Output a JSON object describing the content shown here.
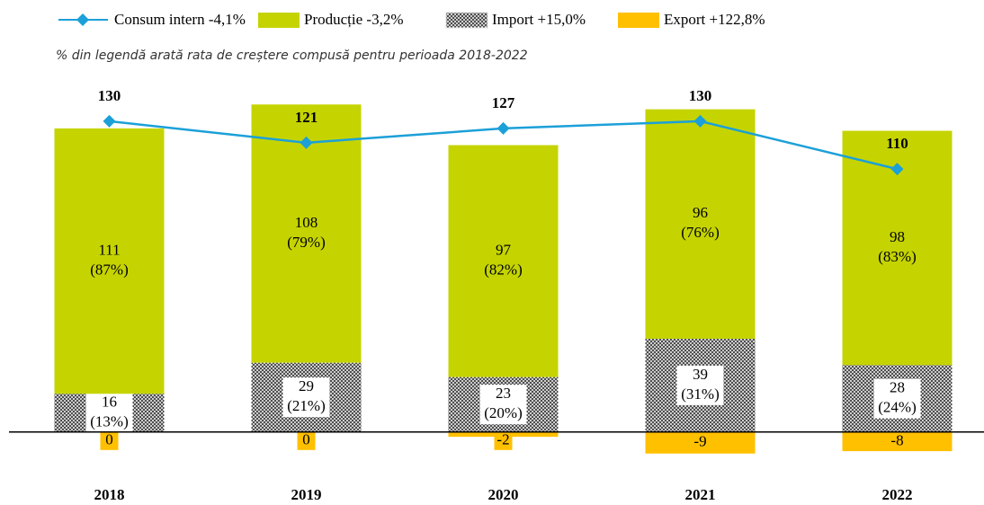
{
  "chart_data": {
    "type": "bar",
    "subtitle": "% din legendă arată rata de creștere compusă pentru perioada 2018-2022",
    "categories": [
      "2018",
      "2019",
      "2020",
      "2021",
      "2022"
    ],
    "ylim": [
      -20,
      145
    ],
    "series": [
      {
        "name": "Consum intern -4,1%",
        "type": "line",
        "color": "#1ca0d8",
        "values": [
          130,
          121,
          127,
          130,
          110
        ]
      },
      {
        "name": "Producție -3,2%",
        "color": "#c5d400",
        "values": [
          111,
          108,
          97,
          96,
          98
        ],
        "share_labels": [
          "(87%)",
          "(79%)",
          "(82%)",
          "(76%)",
          "(83%)"
        ]
      },
      {
        "name": "Import +15,0%",
        "color": "#404040",
        "pattern": "hatch",
        "values": [
          16,
          29,
          23,
          39,
          28
        ],
        "share_labels": [
          "(13%)",
          "(21%)",
          "(20%)",
          "(31%)",
          "(24%)"
        ]
      },
      {
        "name": "Export +122,8%",
        "color": "#ffc000",
        "values": [
          0,
          0,
          -2,
          -9,
          -8
        ]
      }
    ]
  }
}
